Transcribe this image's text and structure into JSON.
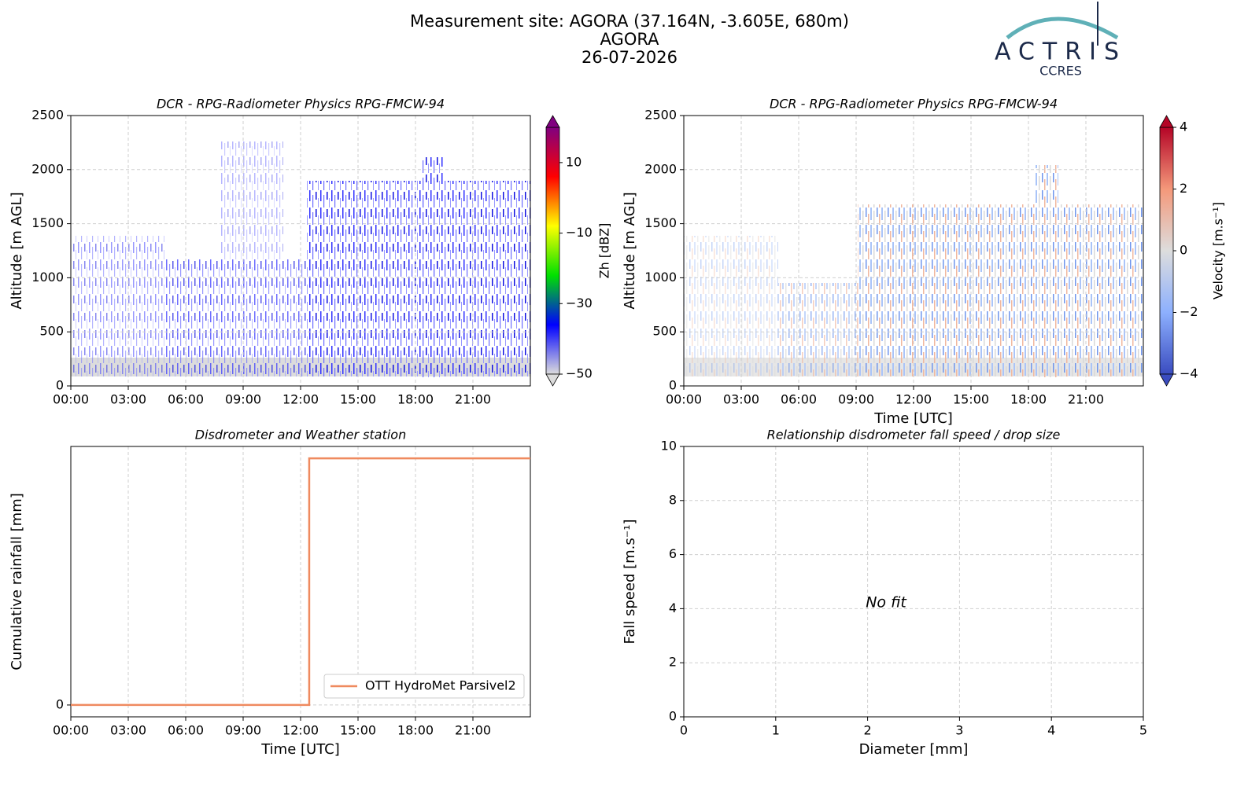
{
  "header": {
    "title": "Measurement site: AGORA (37.164N, -3.605E, 680m)",
    "subtitle": "AGORA",
    "date": "26-07-2026",
    "logo": "ACTRIS",
    "logo_sub": "CCRES"
  },
  "chart_data": [
    {
      "type": "heatmap",
      "title": "DCR - RPG-Radiometer Physics RPG-FMCW-94",
      "y_label": "Altitude [m AGL]",
      "xlim": [
        0,
        24
      ],
      "xticks": [
        {
          "value": 0,
          "label": "00:00"
        },
        {
          "value": 3,
          "label": "03:00"
        },
        {
          "value": 6,
          "label": "06:00"
        },
        {
          "value": 9,
          "label": "09:00"
        },
        {
          "value": 12,
          "label": "12:00"
        },
        {
          "value": 15,
          "label": "15:00"
        },
        {
          "value": 18,
          "label": "18:00"
        },
        {
          "value": 21,
          "label": "21:00"
        }
      ],
      "ylim": [
        0,
        2500
      ],
      "yticks": [
        0,
        500,
        1000,
        1500,
        2000,
        2500
      ],
      "grid": true,
      "colorbar_label": "Zh [dBZ]",
      "clim": [
        -50,
        20
      ],
      "cticks": [
        {
          "value": -50,
          "label": "−50"
        },
        {
          "value": -30,
          "label": "−30"
        },
        {
          "value": -10,
          "label": "−10"
        },
        10
      ],
      "colors": [
        "#dcdcdc",
        "#0000ff",
        "#00e000",
        "#ffff00",
        "#ff0000",
        "#800080"
      ]
    },
    {
      "type": "heatmap",
      "title": "DCR - RPG-Radiometer Physics RPG-FMCW-94",
      "y_label": "Altitude [m AGL]",
      "x_label": "Time [UTC]",
      "xlim": [
        0,
        24
      ],
      "xticks": [
        {
          "value": 0,
          "label": "00:00"
        },
        {
          "value": 3,
          "label": "03:00"
        },
        {
          "value": 6,
          "label": "06:00"
        },
        {
          "value": 9,
          "label": "09:00"
        },
        {
          "value": 12,
          "label": "12:00"
        },
        {
          "value": 15,
          "label": "15:00"
        },
        {
          "value": 18,
          "label": "18:00"
        },
        {
          "value": 21,
          "label": "21:00"
        }
      ],
      "ylim": [
        0,
        2500
      ],
      "yticks": [
        0,
        500,
        1000,
        1500,
        2000,
        2500
      ],
      "grid": true,
      "colorbar_label": "Velocity [m.s⁻¹]",
      "clim": [
        -4,
        4
      ],
      "cticks": [
        {
          "value": -4,
          "label": "−4"
        },
        {
          "value": -2,
          "label": "−2"
        },
        0,
        2,
        4
      ],
      "colors": [
        "#3a4cc0",
        "#8db0fe",
        "#dddddd",
        "#f4987a",
        "#b40426"
      ]
    },
    {
      "type": "line",
      "title": "Disdrometer and Weather station",
      "y_label": "Cumulative rainfall [mm]",
      "x_label": "Time [UTC]",
      "xlim": [
        0,
        24
      ],
      "xticks": [
        {
          "value": 0,
          "label": "00:00"
        },
        {
          "value": 3,
          "label": "03:00"
        },
        {
          "value": 6,
          "label": "06:00"
        },
        {
          "value": 9,
          "label": "09:00"
        },
        {
          "value": 12,
          "label": "12:00"
        },
        {
          "value": 15,
          "label": "15:00"
        },
        {
          "value": 18,
          "label": "18:00"
        },
        {
          "value": 21,
          "label": "21:00"
        }
      ],
      "ylim": [
        -0.048,
        1.048
      ],
      "yticks": [
        0
      ],
      "grid": true,
      "legend": "lower right",
      "x": [
        0,
        12.45,
        12.45,
        24
      ],
      "series": [
        {
          "name": "OTT HydroMet Parsivel2",
          "color": "#ef8a5f",
          "values": [
            0,
            0,
            1,
            1
          ]
        }
      ]
    },
    {
      "type": "scatter",
      "title": "Relationship disdrometer fall speed / drop size",
      "y_label": "Fall speed [m.s⁻¹]",
      "x_label": "Diameter [mm]",
      "xlim": [
        0,
        5
      ],
      "xticks": [
        0,
        1,
        2,
        3,
        4,
        5
      ],
      "ylim": [
        0,
        10
      ],
      "yticks": [
        0,
        2,
        4,
        6,
        8,
        10
      ],
      "grid": true,
      "annotation": "No fit"
    }
  ]
}
